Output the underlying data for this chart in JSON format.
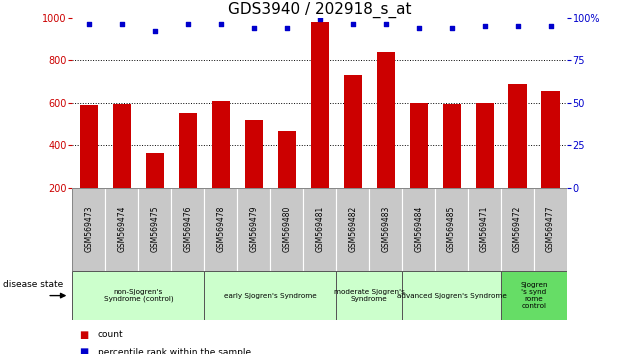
{
  "title": "GDS3940 / 202918_s_at",
  "samples": [
    "GSM569473",
    "GSM569474",
    "GSM569475",
    "GSM569476",
    "GSM569478",
    "GSM569479",
    "GSM569480",
    "GSM569481",
    "GSM569482",
    "GSM569483",
    "GSM569484",
    "GSM569485",
    "GSM569471",
    "GSM569472",
    "GSM569477"
  ],
  "counts": [
    590,
    595,
    365,
    550,
    610,
    520,
    465,
    980,
    730,
    840,
    600,
    595,
    600,
    690,
    655
  ],
  "percentiles": [
    96,
    96,
    92,
    96,
    96,
    94,
    94,
    99,
    96,
    96,
    94,
    94,
    95,
    95,
    95
  ],
  "bar_color": "#cc0000",
  "dot_color": "#0000cc",
  "ylim_left": [
    200,
    1000
  ],
  "ylim_right": [
    0,
    100
  ],
  "yticks_left": [
    200,
    400,
    600,
    800,
    1000
  ],
  "yticks_right": [
    0,
    25,
    50,
    75,
    100
  ],
  "groups": [
    {
      "label": "non-Sjogren's\nSyndrome (control)",
      "start": 0,
      "end": 4,
      "color": "#ccffcc"
    },
    {
      "label": "early Sjogren's Syndrome",
      "start": 4,
      "end": 8,
      "color": "#ccffcc"
    },
    {
      "label": "moderate Sjogren's\nSyndrome",
      "start": 8,
      "end": 10,
      "color": "#ccffcc"
    },
    {
      "label": "advanced Sjogren's Syndrome",
      "start": 10,
      "end": 13,
      "color": "#ccffcc"
    },
    {
      "label": "Sjogren\n's synd\nrome\ncontrol",
      "start": 13,
      "end": 15,
      "color": "#66dd66"
    }
  ],
  "disease_state_label": "disease state",
  "legend_count_label": "count",
  "legend_pct_label": "percentile rank within the sample",
  "title_fontsize": 11,
  "bar_width": 0.55
}
